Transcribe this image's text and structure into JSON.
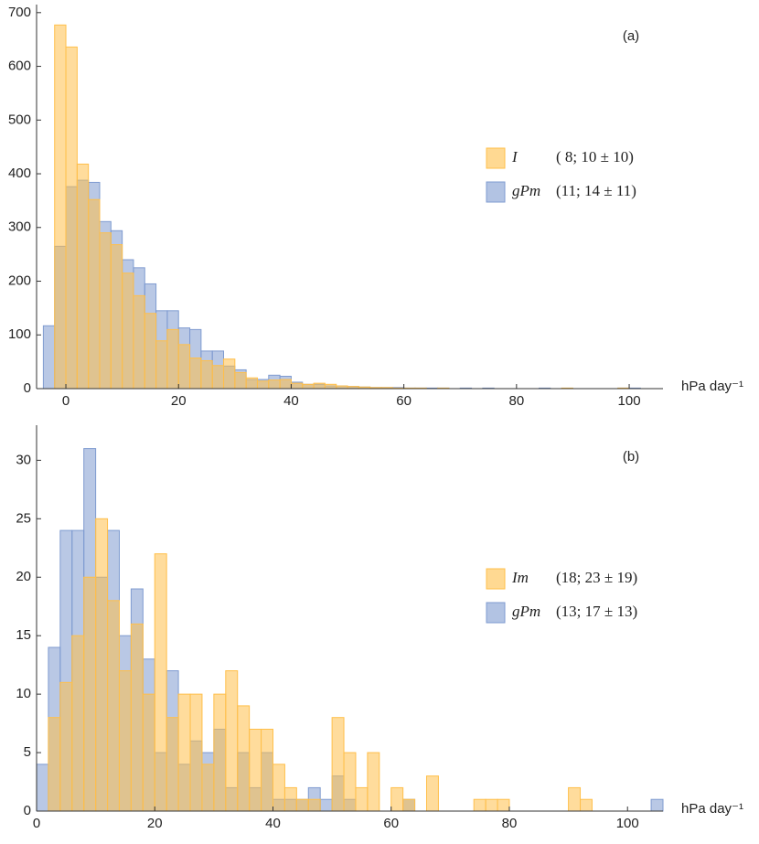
{
  "chart_data": [
    {
      "type": "histogram",
      "annotation": "(a)",
      "x_label": "hPa day⁻¹",
      "bins": [
        -4,
        -2,
        0,
        2,
        4,
        6,
        8,
        10,
        12,
        14,
        16,
        18,
        20,
        22,
        24,
        26,
        28,
        30,
        32,
        34,
        36,
        38,
        40,
        42,
        44,
        46,
        48,
        50,
        52,
        54,
        56,
        58,
        60,
        62,
        64,
        66,
        68,
        70,
        72,
        74,
        76,
        78,
        80,
        82,
        84,
        86,
        88,
        90,
        92,
        94,
        96,
        98,
        100,
        102,
        104
      ],
      "xlim": [
        -5.2,
        106
      ],
      "xticks": [
        0,
        20,
        40,
        60,
        80,
        100
      ],
      "ylim": [
        0,
        715
      ],
      "yticks": [
        0,
        100,
        200,
        300,
        400,
        500,
        600,
        700
      ],
      "series": [
        {
          "name": "gPm",
          "stats": "(11; 14 ± 11)",
          "color": "#7f9bd0",
          "values": [
            117,
            265,
            376,
            388,
            384,
            311,
            294,
            240,
            225,
            195,
            145,
            145,
            113,
            110,
            70,
            70,
            42,
            35,
            17,
            17,
            25,
            23,
            12,
            8,
            8,
            5,
            5,
            4,
            3,
            2,
            2,
            2,
            1,
            1,
            1,
            1,
            0,
            1,
            0,
            1,
            0,
            0,
            0,
            0,
            1,
            0,
            0,
            0,
            0,
            0,
            0,
            1,
            1,
            0
          ]
        },
        {
          "name": "I",
          "stats": "( 8; 10 ± 10)",
          "color": "#ffbf4a",
          "values": [
            0,
            677,
            636,
            418,
            352,
            290,
            268,
            215,
            173,
            140,
            89,
            110,
            82,
            57,
            52,
            43,
            55,
            30,
            20,
            14,
            16,
            17,
            10,
            8,
            10,
            8,
            5,
            4,
            3,
            2,
            2,
            1,
            1,
            1,
            0,
            1,
            0,
            0,
            0,
            0,
            0,
            0,
            0,
            0,
            0,
            0,
            1,
            0,
            0,
            0,
            0,
            1,
            0,
            0
          ]
        }
      ]
    },
    {
      "type": "histogram",
      "annotation": "(b)",
      "x_label": "hPa day⁻¹",
      "bins": [
        0,
        2,
        4,
        6,
        8,
        10,
        12,
        14,
        16,
        18,
        20,
        22,
        24,
        26,
        28,
        30,
        32,
        34,
        36,
        38,
        40,
        42,
        44,
        46,
        48,
        50,
        52,
        54,
        56,
        58,
        60,
        62,
        64,
        66,
        68,
        70,
        72,
        74,
        76,
        78,
        80,
        82,
        84,
        86,
        88,
        90,
        92,
        94,
        96,
        98,
        100,
        102,
        104,
        106
      ],
      "xlim": [
        0,
        106
      ],
      "xticks": [
        0,
        20,
        40,
        60,
        80,
        100
      ],
      "ylim": [
        0,
        33
      ],
      "yticks": [
        0,
        5,
        10,
        15,
        20,
        25,
        30
      ],
      "series": [
        {
          "name": "gPm",
          "stats": "(13; 17 ± 13)",
          "color": "#7f9bd0",
          "values": [
            4,
            14,
            24,
            24,
            31,
            20,
            24,
            15,
            19,
            13,
            5,
            12,
            4,
            6,
            5,
            7,
            2,
            5,
            2,
            5,
            1,
            1,
            1,
            2,
            1,
            3,
            1,
            0,
            0,
            0,
            0,
            1,
            0,
            0,
            0,
            0,
            0,
            0,
            0,
            0,
            0,
            0,
            0,
            0,
            0,
            0,
            0,
            0,
            0,
            0,
            0,
            0,
            1
          ]
        },
        {
          "name": "Im",
          "stats": "(18; 23 ± 19)",
          "color": "#ffbf4a",
          "values": [
            0,
            8,
            11,
            15,
            20,
            25,
            18,
            12,
            16,
            10,
            22,
            8,
            10,
            10,
            4,
            10,
            12,
            9,
            7,
            7,
            4,
            2,
            1,
            1,
            0,
            8,
            5,
            2,
            5,
            0,
            2,
            1,
            0,
            3,
            0,
            0,
            0,
            1,
            1,
            1,
            0,
            0,
            0,
            0,
            0,
            2,
            1,
            0,
            0,
            0,
            0,
            0,
            0
          ]
        }
      ]
    }
  ]
}
